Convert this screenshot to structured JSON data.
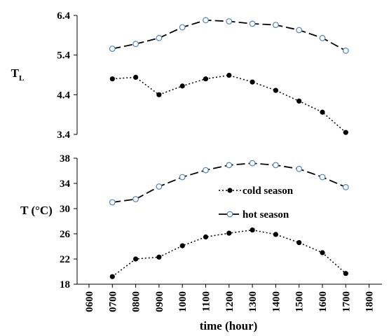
{
  "chart_data": [
    {
      "type": "line",
      "ylabel": "T",
      "ylabel_sub": "L",
      "ylim": [
        3.4,
        6.4
      ],
      "yticks": [
        "3.4",
        "4.4",
        "5.4",
        "6.4"
      ],
      "x": [
        "0700",
        "0800",
        "0900",
        "1000",
        "1100",
        "1200",
        "1300",
        "1400",
        "1500",
        "1600",
        "1700"
      ],
      "series": [
        {
          "name": "cold season",
          "values": [
            4.8,
            4.84,
            4.4,
            4.62,
            4.8,
            4.89,
            4.72,
            4.51,
            4.24,
            3.96,
            3.45
          ]
        },
        {
          "name": "hot season",
          "values": [
            5.56,
            5.68,
            5.83,
            6.1,
            6.28,
            6.25,
            6.19,
            6.16,
            6.03,
            5.83,
            5.51
          ]
        }
      ]
    },
    {
      "type": "line",
      "ylabel": "T  (°C)",
      "xlabel": "time (hour)",
      "ylim": [
        18,
        38
      ],
      "yticks": [
        "18",
        "22",
        "26",
        "30",
        "34",
        "38"
      ],
      "xticks": [
        "0600",
        "0700",
        "0800",
        "0900",
        "1000",
        "1100",
        "1200",
        "1300",
        "1400",
        "1500",
        "1600",
        "1700",
        "1800"
      ],
      "x": [
        "0700",
        "0800",
        "0900",
        "1000",
        "1100",
        "1200",
        "1300",
        "1400",
        "1500",
        "1600",
        "1700"
      ],
      "legend_position": "center-right",
      "series": [
        {
          "name": "cold season",
          "values": [
            19.2,
            22.0,
            22.3,
            24.1,
            25.5,
            26.1,
            26.6,
            25.9,
            24.6,
            23.0,
            19.7
          ]
        },
        {
          "name": "hot season",
          "values": [
            31.0,
            31.5,
            33.5,
            35.0,
            36.1,
            36.9,
            37.2,
            36.9,
            36.3,
            35.0,
            33.4
          ]
        }
      ],
      "legend": [
        {
          "label": "cold season",
          "series": "cold season"
        },
        {
          "label": "hot season",
          "series": "hot season"
        }
      ]
    }
  ],
  "style": {
    "cold_color": "#000000",
    "hot_line_color": "#000000",
    "hot_marker_color": "#4f81bd"
  }
}
